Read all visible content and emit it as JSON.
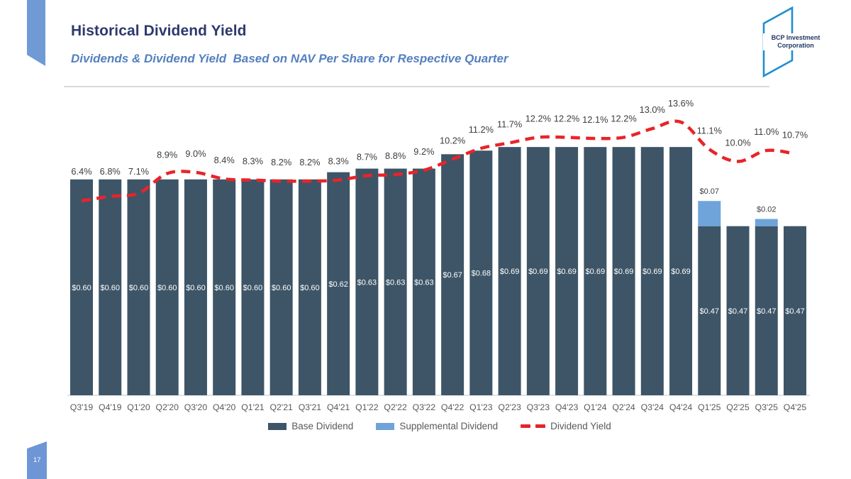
{
  "slide": {
    "title": "Historical Dividend Yield",
    "subtitle": "Dividends & Dividend Yield  Based on NAV Per Share for Respective Quarter",
    "page_number": "17",
    "logo": {
      "line1": "BCP Investment",
      "line2": "Corporation"
    }
  },
  "legend": {
    "items": [
      {
        "label": "Base Dividend",
        "color": "#3d5567",
        "style": "swatch"
      },
      {
        "label": "Supplemental Dividend",
        "color": "#6fa4da",
        "style": "swatch"
      },
      {
        "label": "Dividend Yield",
        "color": "#e8242a",
        "style": "dash"
      }
    ]
  },
  "chart_data": {
    "type": "bar",
    "subtype": "stacked-bar-with-line-overlay",
    "title": "Dividends & Dividend Yield Based on NAV Per Share for Respective Quarter",
    "xlabel": "",
    "ylabel": "",
    "grid": false,
    "legend_position": "bottom",
    "value_axis_visible": false,
    "categories": [
      "Q3'19",
      "Q4'19",
      "Q1'20",
      "Q2'20",
      "Q3'20",
      "Q4'20",
      "Q1'21",
      "Q2'21",
      "Q3'21",
      "Q4'21",
      "Q1'22",
      "Q2'22",
      "Q3'22",
      "Q4'22",
      "Q1'23",
      "Q2'23",
      "Q3'23",
      "Q4'23",
      "Q1'24",
      "Q2'24",
      "Q3'24",
      "Q4'24",
      "Q1'25",
      "Q2'25",
      "Q3'25",
      "Q4'25"
    ],
    "series": [
      {
        "name": "Base Dividend",
        "type": "bar",
        "color": "#3d5567",
        "unit": "$",
        "values": [
          0.6,
          0.6,
          0.6,
          0.6,
          0.6,
          0.6,
          0.6,
          0.6,
          0.6,
          0.62,
          0.63,
          0.63,
          0.63,
          0.67,
          0.68,
          0.69,
          0.69,
          0.69,
          0.69,
          0.69,
          0.69,
          0.69,
          0.47,
          0.47,
          0.47,
          0.47
        ]
      },
      {
        "name": "Supplemental Dividend",
        "type": "bar",
        "color": "#6fa4da",
        "unit": "$",
        "values": [
          0,
          0,
          0,
          0,
          0,
          0,
          0,
          0,
          0,
          0,
          0,
          0,
          0,
          0,
          0,
          0,
          0,
          0,
          0,
          0,
          0,
          0,
          0.07,
          0,
          0.02,
          0
        ]
      },
      {
        "name": "Dividend Yield",
        "type": "line",
        "color": "#e8242a",
        "unit": "%",
        "dashed": true,
        "values": [
          6.4,
          6.8,
          7.1,
          8.9,
          9.0,
          8.4,
          8.3,
          8.2,
          8.2,
          8.3,
          8.7,
          8.8,
          9.2,
          10.2,
          11.2,
          11.7,
          12.2,
          12.2,
          12.1,
          12.2,
          13.0,
          13.6,
          11.1,
          10.0,
          11.0,
          10.7
        ]
      }
    ]
  },
  "colors": {
    "title": "#2d3a6c",
    "subtitle": "#5480bf",
    "axis_text": "#595959",
    "yield_label_text": "#3d3d3d",
    "bar_label_text": "#ffffff",
    "baseline": "#d9d9d9",
    "ribbon": "#6f9ad5",
    "logo_outline": "#1e8fce",
    "logo_text": "#1f3864"
  }
}
